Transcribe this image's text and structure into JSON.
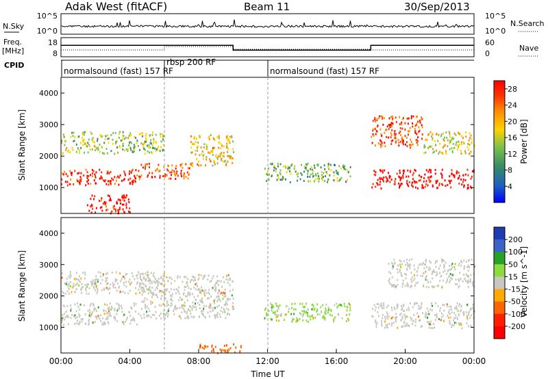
{
  "header": {
    "station": "Adak West (fitACF)",
    "beam": "Beam 11",
    "date": "30/Sep/2013"
  },
  "nsky_panel": {
    "left_label": "N.Sky",
    "right_label": "N.Search",
    "left_ticks": [
      "10^5",
      "10^0"
    ],
    "right_ticks": [
      "10^5",
      "10^0"
    ]
  },
  "freq_panel": {
    "left_label_line1": "Freq.",
    "left_label_line2": "[MHz]",
    "right_label": "Nave",
    "left_ticks": [
      "18",
      "8"
    ],
    "right_ticks": [
      "60",
      "0"
    ],
    "freq_steps": [
      {
        "t_start": 0,
        "t_end": 10,
        "mhz": 14
      },
      {
        "t_start": 10,
        "t_end": 18,
        "mhz": 11.5
      },
      {
        "t_start": 18,
        "t_end": 24,
        "mhz": 14
      }
    ]
  },
  "cpid": {
    "label": "CPID",
    "modes": [
      {
        "t": 0,
        "text": "normalsound (fast) 157 RF"
      },
      {
        "t": 6,
        "text": "rbsp 200 RF"
      },
      {
        "t": 12,
        "text": "normalsound (fast) 157 RF"
      }
    ]
  },
  "chart_data": [
    {
      "type": "heatmap",
      "name": "power",
      "xlabel": "",
      "ylabel": "Slant Range [km]",
      "xlim": [
        0,
        24
      ],
      "ylim": [
        180,
        4500
      ],
      "y_ticks": [
        "1000",
        "2000",
        "3000",
        "4000"
      ],
      "colorbar": {
        "label": "Power [dB]",
        "ticks": [
          "28",
          "24",
          "20",
          "16",
          "12",
          "8",
          "4"
        ],
        "range": [
          0,
          30
        ],
        "colors": [
          "#0000ff",
          "#2060c0",
          "#3c8c64",
          "#78c050",
          "#ffd200",
          "#ff8c00",
          "#ff3200",
          "#ff0000"
        ]
      },
      "echo_bands": [
        {
          "t_start": 0,
          "t_end": 4.5,
          "range_start": 1100,
          "range_end": 1600,
          "power_db": 26
        },
        {
          "t_start": 4.5,
          "t_end": 7.5,
          "range_start": 1300,
          "range_end": 1800,
          "power_db": 24
        },
        {
          "t_start": 7.5,
          "t_end": 10,
          "range_start": 1700,
          "range_end": 2700,
          "power_db": 18
        },
        {
          "t_start": 0,
          "t_end": 6,
          "range_start": 2100,
          "range_end": 2800,
          "power_db": 14
        },
        {
          "t_start": 1.5,
          "t_end": 4,
          "range_start": 200,
          "range_end": 800,
          "power_db": 27
        },
        {
          "t_start": 11.8,
          "t_end": 16.8,
          "range_start": 1200,
          "range_end": 1800,
          "power_db": 12
        },
        {
          "t_start": 18,
          "t_end": 24,
          "range_start": 1000,
          "range_end": 1600,
          "power_db": 28
        },
        {
          "t_start": 18,
          "t_end": 21,
          "range_start": 2300,
          "range_end": 3300,
          "power_db": 24
        },
        {
          "t_start": 21,
          "t_end": 24,
          "range_start": 2100,
          "range_end": 2800,
          "power_db": 16
        }
      ]
    },
    {
      "type": "heatmap",
      "name": "velocity",
      "xlabel": "Time UT",
      "ylabel": "Slant Range [km]",
      "xlim": [
        0,
        24
      ],
      "ylim": [
        180,
        4500
      ],
      "x_ticks": [
        "00:00",
        "04:00",
        "08:00",
        "12:00",
        "16:00",
        "20:00",
        "00:00"
      ],
      "y_ticks": [
        "1000",
        "2000",
        "3000",
        "4000"
      ],
      "colorbar": {
        "label": "Velocity [m s^-1]",
        "ticks": [
          "200",
          "100",
          "50",
          "15",
          "-15",
          "-50",
          "-100",
          "-200"
        ],
        "colors": [
          "#1e3cb4",
          "#3c64c8",
          "#28a028",
          "#8cdc3c",
          "#c8c8c0",
          "#ffaa00",
          "#ff6400",
          "#ff1e00",
          "#ff0000"
        ]
      },
      "echo_bands": [
        {
          "t_start": 0,
          "t_end": 4.5,
          "range_start": 1100,
          "range_end": 1800,
          "velocity": 0
        },
        {
          "t_start": 4.5,
          "t_end": 10,
          "range_start": 1300,
          "range_end": 2700,
          "velocity": 0
        },
        {
          "t_start": 0,
          "t_end": 6,
          "range_start": 2100,
          "range_end": 2800,
          "velocity": 0
        },
        {
          "t_start": 11.8,
          "t_end": 16.8,
          "range_start": 1200,
          "range_end": 1800,
          "velocity": 20
        },
        {
          "t_start": 18,
          "t_end": 24,
          "range_start": 1000,
          "range_end": 1800,
          "velocity": 0
        },
        {
          "t_start": 19,
          "t_end": 24,
          "range_start": 2300,
          "range_end": 3200,
          "velocity": 0
        },
        {
          "t_start": 8,
          "t_end": 10.5,
          "range_start": 200,
          "range_end": 500,
          "velocity": -60
        }
      ]
    }
  ]
}
